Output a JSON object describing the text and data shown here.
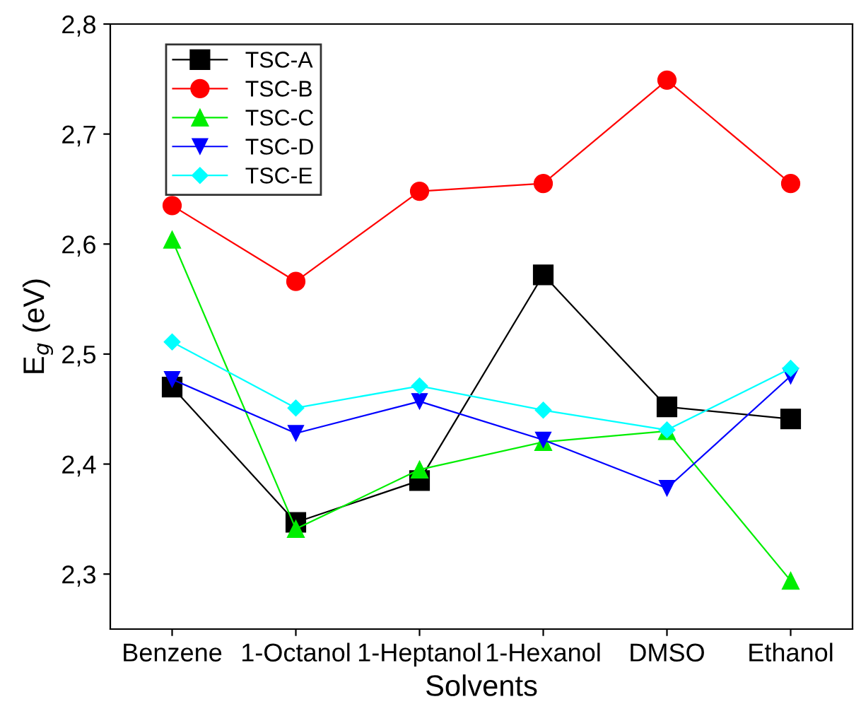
{
  "chart_data": {
    "type": "line",
    "xlabel": "Solvents",
    "ylabel": "E$_{g}$ (eV)",
    "categories": [
      "Benzene",
      "1-Octanol",
      "1-Heptanol",
      "1-Hexanol",
      "DMSO",
      "Ethanol"
    ],
    "series": [
      {
        "name": "TSC-A",
        "color": "#000000",
        "marker": "square",
        "values": [
          2.47,
          2.347,
          2.385,
          2.572,
          2.452,
          2.441
        ]
      },
      {
        "name": "TSC-B",
        "color": "#ff0000",
        "marker": "circle",
        "values": [
          2.635,
          2.566,
          2.648,
          2.655,
          2.749,
          2.655
        ]
      },
      {
        "name": "TSC-C",
        "color": "#00ee00",
        "marker": "triangle",
        "values": [
          2.604,
          2.341,
          2.395,
          2.42,
          2.43,
          2.294
        ]
      },
      {
        "name": "TSC-D",
        "color": "#0000ff",
        "marker": "triangle_down",
        "values": [
          2.477,
          2.428,
          2.457,
          2.422,
          2.378,
          2.48
        ]
      },
      {
        "name": "TSC-E",
        "color": "#00ffff",
        "marker": "diamond",
        "values": [
          2.511,
          2.451,
          2.471,
          2.449,
          2.431,
          2.487
        ]
      }
    ],
    "ylim": [
      2.25,
      2.8
    ],
    "yticks": [
      {
        "value": 2.3,
        "label": "2,3"
      },
      {
        "value": 2.4,
        "label": "2,4"
      },
      {
        "value": 2.5,
        "label": "2,5"
      },
      {
        "value": 2.6,
        "label": "2,6"
      },
      {
        "value": 2.7,
        "label": "2,7"
      },
      {
        "value": 2.8,
        "label": "2,8"
      }
    ],
    "grid": false,
    "legend": "top left",
    "line_style": "solid"
  }
}
